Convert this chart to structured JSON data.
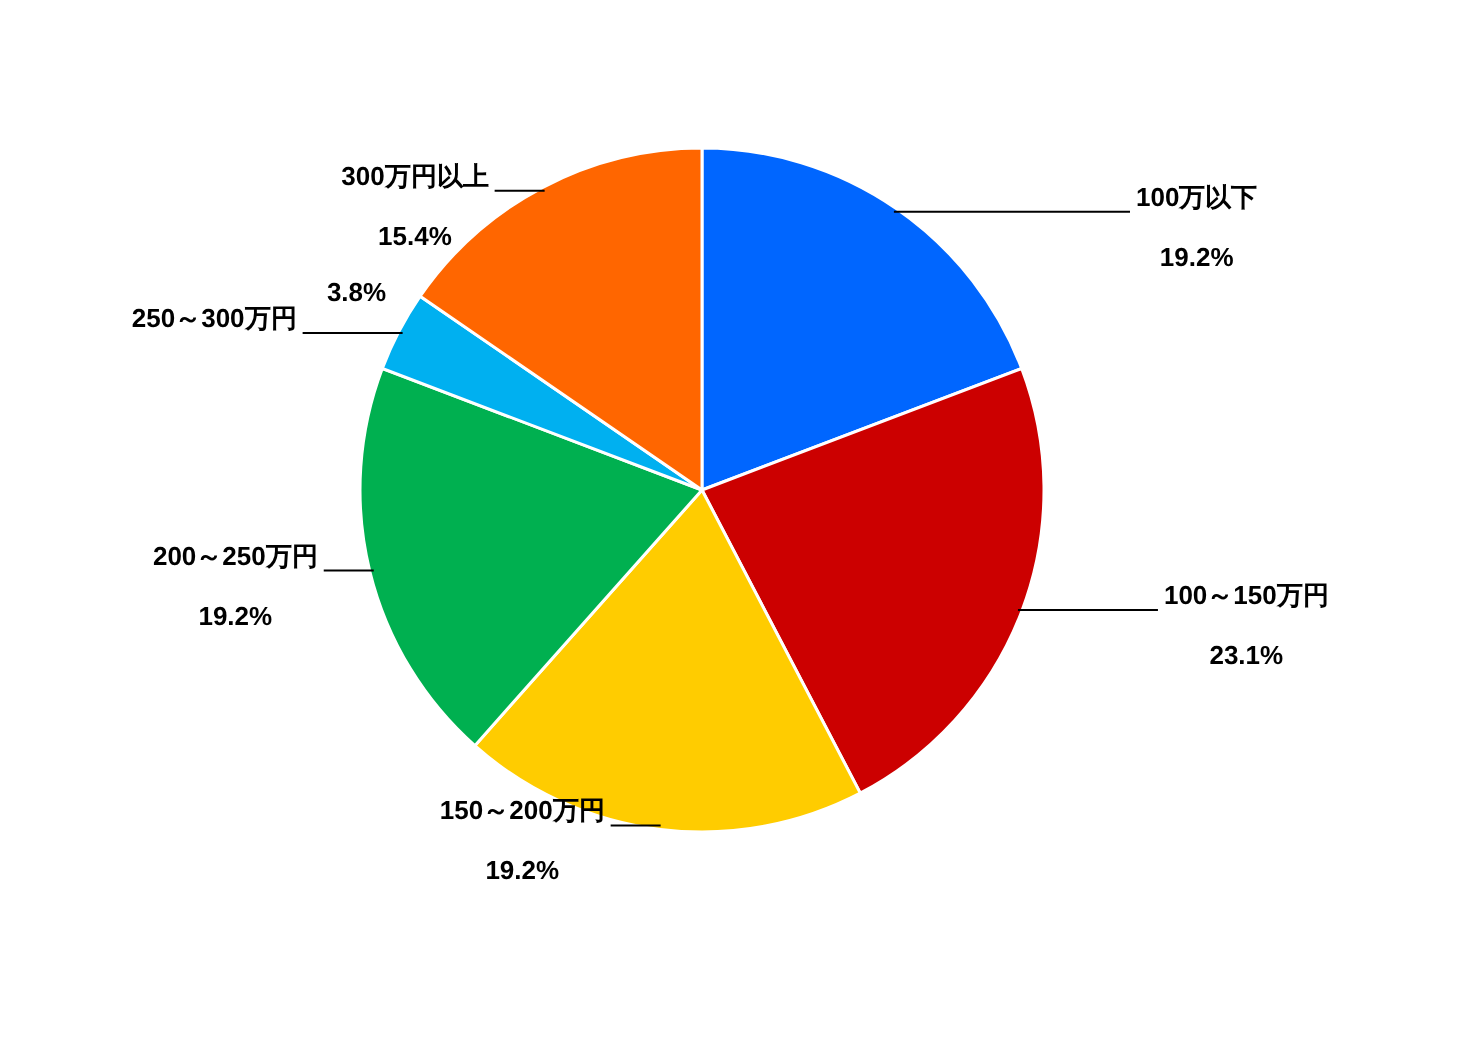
{
  "chart_data": {
    "type": "pie",
    "categories": [
      "100万以下",
      "100～150万円",
      "150～200万円",
      "200～250万円",
      "250～300万円",
      "300万円以上"
    ],
    "values": [
      19.2,
      23.1,
      19.2,
      19.2,
      3.8,
      15.4
    ],
    "value_labels": [
      "19.2%",
      "23.1%",
      "19.2%",
      "19.2%",
      "3.8%",
      "15.4%"
    ],
    "colors": [
      "#0066ff",
      "#cc0000",
      "#ffcc00",
      "#00b050",
      "#00b0f0",
      "#ff6600"
    ],
    "legend": false
  }
}
